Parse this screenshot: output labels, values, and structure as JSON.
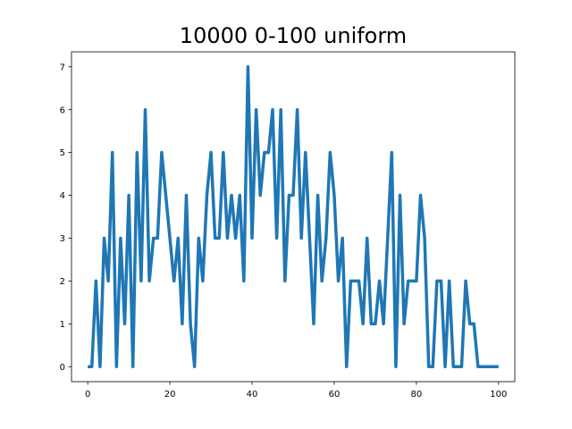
{
  "chart_data": {
    "type": "line",
    "title": "10000 0-100 uniform",
    "xlabel": "",
    "ylabel": "",
    "xlim": [
      -3.95,
      103.95
    ],
    "ylim": [
      -0.35,
      7.35
    ],
    "xticks": [
      0,
      20,
      40,
      60,
      80,
      100
    ],
    "yticks": [
      0,
      1,
      2,
      3,
      4,
      5,
      6,
      7
    ],
    "grid": false,
    "color": "#1f77b4",
    "series": [
      {
        "x": [
          0,
          1,
          2,
          3,
          4,
          5,
          6,
          7,
          8,
          9,
          10,
          11,
          12,
          13,
          14,
          15,
          16,
          17,
          18,
          19,
          20,
          21,
          22,
          23,
          24,
          25,
          26,
          27,
          28,
          29,
          30,
          31,
          32,
          33,
          34,
          35,
          36,
          37,
          38,
          39,
          40,
          41,
          42,
          43,
          44,
          45,
          46,
          47,
          48,
          49,
          50,
          51,
          52,
          53,
          54,
          55,
          56,
          57,
          58,
          59,
          60,
          61,
          62,
          63,
          64,
          65,
          66,
          67,
          68,
          69,
          70,
          71,
          72,
          73,
          74,
          75,
          76,
          77,
          78,
          79,
          80,
          81,
          82,
          83,
          84,
          85,
          86,
          87,
          88,
          89,
          90,
          91,
          92,
          93,
          94,
          95,
          96,
          97,
          98,
          99,
          100
        ],
        "values": [
          0,
          0,
          2,
          0,
          3,
          2,
          5,
          0,
          3,
          1,
          4,
          0,
          5,
          2,
          6,
          2,
          3,
          3,
          5,
          4,
          3,
          2,
          3,
          1,
          4,
          1,
          0,
          3,
          2,
          4,
          5,
          3,
          3,
          5,
          3,
          4,
          3,
          4,
          2,
          7,
          3,
          6,
          4,
          5,
          5,
          6,
          3,
          6,
          2,
          4,
          4,
          6,
          3,
          5,
          3,
          1,
          4,
          2,
          3,
          5,
          4,
          2,
          3,
          0,
          2,
          2,
          2,
          1,
          3,
          1,
          1,
          2,
          1,
          3,
          5,
          0,
          4,
          1,
          2,
          2,
          2,
          4,
          3,
          0,
          0,
          2,
          2,
          0,
          2,
          0,
          0,
          0,
          2,
          1,
          1,
          0,
          0,
          0,
          0,
          0,
          0
        ]
      }
    ]
  }
}
